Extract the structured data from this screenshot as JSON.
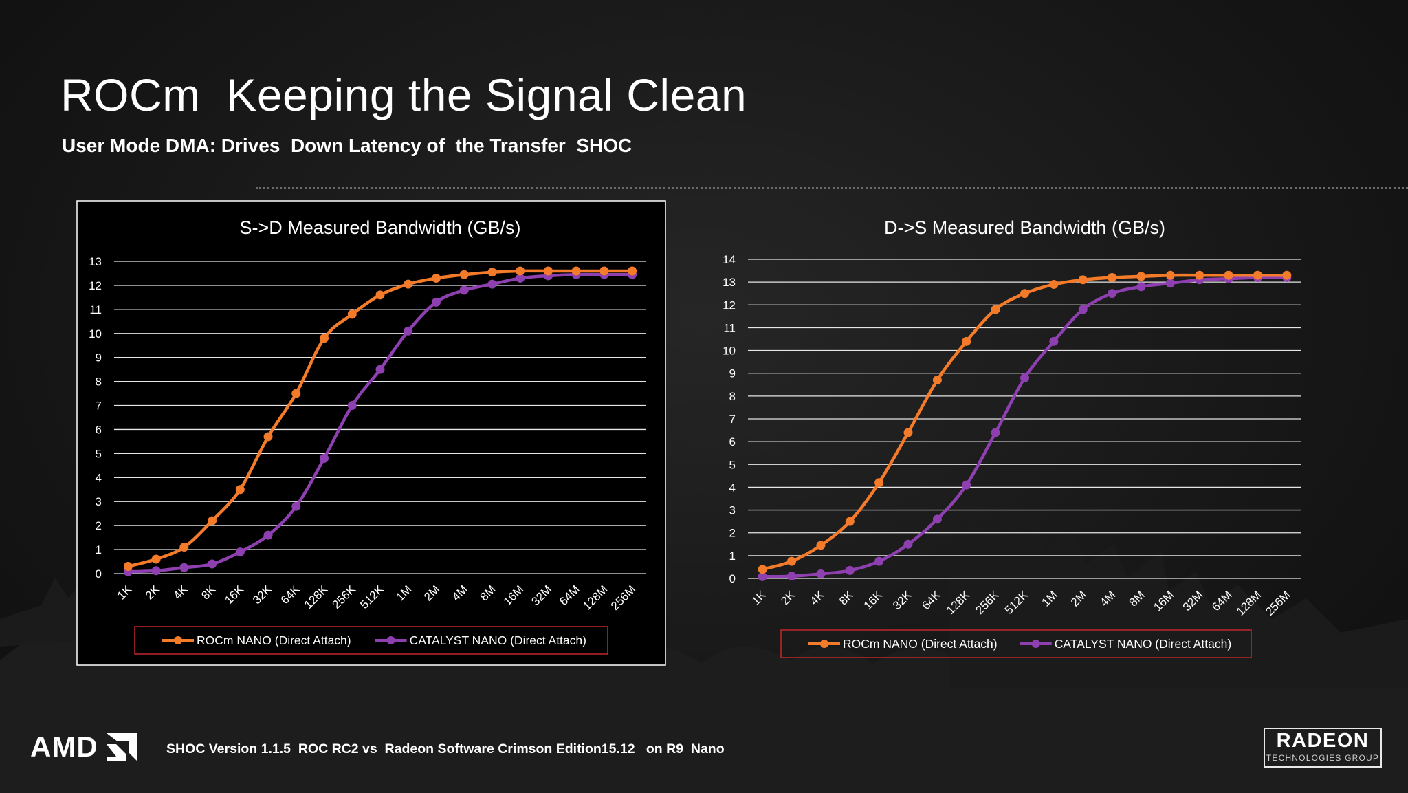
{
  "slide": {
    "title": "ROCm  Keeping the Signal Clean",
    "subtitle": "User Mode DMA: Drives  Down Latency of  the Transfer  SHOC",
    "footer": "SHOC Version 1.1.5  ROC RC2 vs  Radeon Software Crimson Edition15.12   on R9  Nano",
    "amd_logo": "AMD",
    "radeon_logo": "RADEON",
    "radeon_logo_sub": "TECHNOLOGIES GROUP"
  },
  "colors": {
    "rocm": "#f47b2a",
    "catalyst": "#8e3fb0",
    "legend_border": "#c0282b",
    "grid": "#e6e6e6"
  },
  "chart_data": [
    {
      "type": "line",
      "title": "S->D Measured Bandwidth (GB/s)",
      "xlabel": "",
      "ylabel": "",
      "categories": [
        "1K",
        "2K",
        "4K",
        "8K",
        "16K",
        "32K",
        "64K",
        "128K",
        "256K",
        "512K",
        "1M",
        "2M",
        "4M",
        "8M",
        "16M",
        "32M",
        "64M",
        "128M",
        "256M"
      ],
      "ylim": [
        0,
        13
      ],
      "yticks": [
        0,
        1,
        2,
        3,
        4,
        5,
        6,
        7,
        8,
        9,
        10,
        11,
        12,
        13
      ],
      "grid": true,
      "legend_position": "bottom",
      "series": [
        {
          "name": "ROCm  NANO (Direct Attach)",
          "color_key": "rocm",
          "values": [
            0.3,
            0.6,
            1.1,
            2.2,
            3.5,
            5.7,
            7.5,
            9.8,
            10.8,
            11.6,
            12.05,
            12.3,
            12.45,
            12.55,
            12.6,
            12.6,
            12.6,
            12.6,
            12.6
          ]
        },
        {
          "name": "CATALYST NANO (Direct Attach)",
          "color_key": "catalyst",
          "values": [
            0.08,
            0.12,
            0.25,
            0.4,
            0.9,
            1.6,
            2.8,
            4.8,
            7.0,
            8.5,
            10.1,
            11.3,
            11.8,
            12.05,
            12.3,
            12.4,
            12.45,
            12.45,
            12.45
          ]
        }
      ]
    },
    {
      "type": "line",
      "title": "D->S Measured Bandwidth (GB/s)",
      "xlabel": "",
      "ylabel": "",
      "categories": [
        "1K",
        "2K",
        "4K",
        "8K",
        "16K",
        "32K",
        "64K",
        "128K",
        "256K",
        "512K",
        "1M",
        "2M",
        "4M",
        "8M",
        "16M",
        "32M",
        "64M",
        "128M",
        "256M"
      ],
      "ylim": [
        0,
        14
      ],
      "yticks": [
        0,
        1,
        2,
        3,
        4,
        5,
        6,
        7,
        8,
        9,
        10,
        11,
        12,
        13,
        14
      ],
      "grid": true,
      "legend_position": "bottom",
      "series": [
        {
          "name": "ROCm NANO (Direct Attach)",
          "color_key": "rocm",
          "values": [
            0.4,
            0.75,
            1.45,
            2.5,
            4.2,
            6.4,
            8.7,
            10.4,
            11.8,
            12.5,
            12.9,
            13.1,
            13.2,
            13.25,
            13.3,
            13.3,
            13.3,
            13.3,
            13.3
          ]
        },
        {
          "name": "CATALYST NANO (Direct Attach)",
          "color_key": "catalyst",
          "values": [
            0.08,
            0.1,
            0.2,
            0.35,
            0.75,
            1.5,
            2.6,
            4.1,
            6.4,
            8.8,
            10.4,
            11.8,
            12.5,
            12.8,
            12.95,
            13.1,
            13.15,
            13.2,
            13.2
          ]
        }
      ]
    }
  ]
}
